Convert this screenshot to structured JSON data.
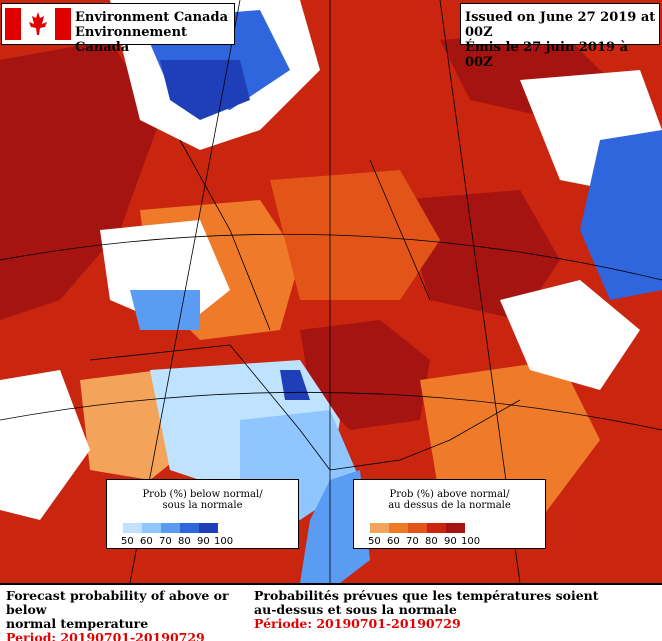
{
  "header": {
    "agency_en": "Environment Canada",
    "agency_fr": "Environnement Canada",
    "issued_en": "Issued on June 27 2019 at 00Z",
    "issued_fr": "Émis le 27 juin 2019 à 00Z"
  },
  "legend_below": {
    "title_line1": "Prob (%) below normal/",
    "title_line2": "sous la normale",
    "ticks": [
      "50",
      "60",
      "70",
      "80",
      "90",
      "100"
    ],
    "colors": [
      "#bfe3ff",
      "#8fc6ff",
      "#5a9cf2",
      "#2f66dd",
      "#1e3fb8"
    ]
  },
  "legend_above": {
    "title_line1": "Prob (%) above normal/",
    "title_line2": "au dessus de la normale",
    "ticks": [
      "50",
      "60",
      "70",
      "80",
      "90",
      "100"
    ],
    "colors": [
      "#f4a35a",
      "#ef7a2a",
      "#e35418",
      "#c9250f",
      "#a51410"
    ]
  },
  "footer": {
    "title_en_line1": "Forecast probability of above or below",
    "title_en_line2": "normal temperature",
    "period_en": "Period: 20190701-20190729",
    "title_fr_line1": "Probabilités prévues que les températures soient",
    "title_fr_line2": "au-dessus et sous la normale",
    "period_fr": "Période: 20190701-20190729"
  },
  "map_colors": {
    "below_light": "#bfe3ff",
    "below_mid": "#5a9cf2",
    "below_dark": "#1e3fb8",
    "above_light": "#f4a35a",
    "above_mid": "#e35418",
    "above_dark": "#a51410",
    "flag_red": "#e00000"
  }
}
